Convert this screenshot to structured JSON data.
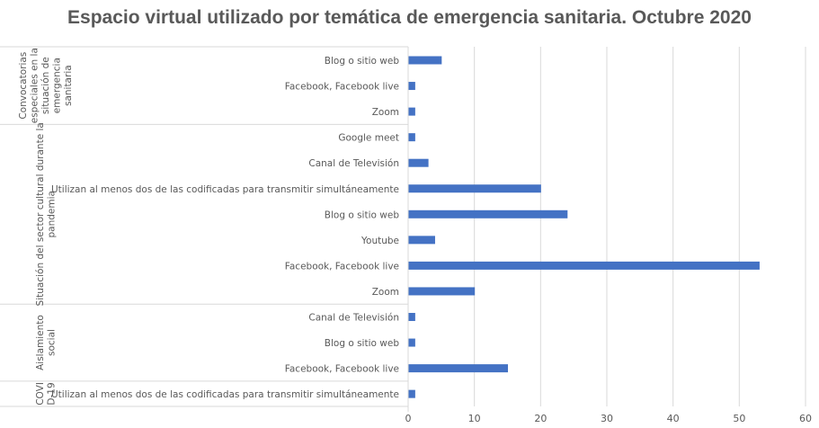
{
  "chart_data": {
    "type": "bar",
    "orientation": "horizontal",
    "title": "Espacio virtual utilizado por temática de emergencia sanitaria. Octubre 2020",
    "xlabel": "",
    "ylabel": "",
    "xlim": [
      0,
      60
    ],
    "x_ticks": [
      0,
      10,
      20,
      30,
      40,
      50,
      60
    ],
    "grid": "vertical",
    "legend": "none",
    "bar_color": "#4472C4",
    "groups": [
      {
        "label_lines": [
          "Convocatorias",
          "especiales en la",
          "situación de",
          "emergencia",
          "sanitaria"
        ],
        "items": [
          {
            "category": "Blog o sitio web",
            "value": 5
          },
          {
            "category": "Facebook, Facebook live",
            "value": 1
          },
          {
            "category": "Zoom",
            "value": 1
          }
        ]
      },
      {
        "label_lines": [
          "Situación del sector cultural durante la",
          "pandemia"
        ],
        "items": [
          {
            "category": "Google meet",
            "value": 1
          },
          {
            "category": "Canal de Televisión",
            "value": 3
          },
          {
            "category": "Utilizan al menos dos de las codificadas para transmitir simultáneamente",
            "value": 20
          },
          {
            "category": "Blog o sitio web",
            "value": 24
          },
          {
            "category": "Youtube",
            "value": 4
          },
          {
            "category": "Facebook, Facebook live",
            "value": 53
          },
          {
            "category": "Zoom",
            "value": 10
          }
        ]
      },
      {
        "label_lines": [
          "Aislamiento",
          "social"
        ],
        "items": [
          {
            "category": "Canal de Televisión",
            "value": 1
          },
          {
            "category": "Blog o sitio web",
            "value": 1
          },
          {
            "category": "Facebook, Facebook live",
            "value": 15
          }
        ]
      },
      {
        "label_lines": [
          "COVI",
          "D-19"
        ],
        "items": [
          {
            "category": "Utilizan al menos dos de las codificadas para transmitir simultáneamente",
            "value": 1
          }
        ]
      }
    ]
  }
}
